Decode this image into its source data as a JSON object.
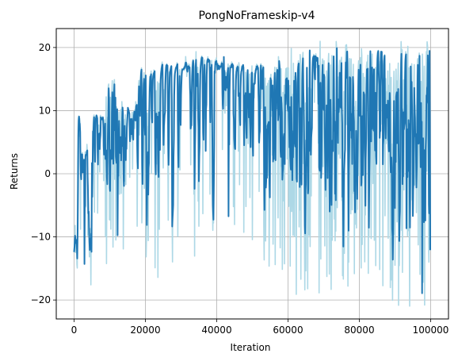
{
  "chart_data": {
    "type": "line",
    "title": "PongNoFrameskip-v4",
    "xlabel": "Iteration",
    "ylabel": "Returns",
    "xlim": [
      -5000,
      105000
    ],
    "ylim": [
      -23,
      23
    ],
    "xticks": [
      0,
      20000,
      40000,
      60000,
      80000,
      100000
    ],
    "xtick_labels": [
      "0",
      "20000",
      "40000",
      "60000",
      "80000",
      "100000"
    ],
    "yticks": [
      -20,
      -10,
      0,
      10,
      20
    ],
    "ytick_labels": [
      "−20",
      "−10",
      "0",
      "10",
      "20"
    ],
    "grid": true,
    "legend": "none",
    "colors": {
      "raw": "#add8e6",
      "smoothed": "#1f77b4",
      "grid": "#b0b0b0"
    },
    "segments": [
      [
        0,
        1000,
        -16,
        -8,
        0.5
      ],
      [
        1000,
        2000,
        -16,
        12,
        0.5
      ],
      [
        2000,
        4000,
        -16,
        5,
        0.2
      ],
      [
        4000,
        5000,
        -21,
        -8,
        0.4
      ],
      [
        5000,
        9000,
        -10,
        11,
        0.3
      ],
      [
        9000,
        10000,
        -20,
        17,
        0.4
      ],
      [
        10000,
        12000,
        -12,
        17,
        0.3
      ],
      [
        12000,
        18000,
        -12,
        12,
        0.3
      ],
      [
        18000,
        20000,
        -10,
        18,
        0.3
      ],
      [
        20000,
        23000,
        -15,
        18,
        0.3
      ],
      [
        23000,
        33000,
        -18,
        19,
        0.3
      ],
      [
        33000,
        37000,
        -20,
        20,
        0.4
      ],
      [
        37000,
        40000,
        -20,
        20,
        0.3
      ],
      [
        40000,
        50000,
        -10,
        19,
        0.15
      ],
      [
        50000,
        52000,
        -20,
        19,
        0.3
      ],
      [
        52000,
        58000,
        -15,
        19,
        0.3
      ],
      [
        58000,
        64000,
        -20,
        20,
        0.4
      ],
      [
        64000,
        74000,
        -20,
        21,
        0.5
      ],
      [
        74000,
        80000,
        -18,
        21,
        0.5
      ],
      [
        80000,
        92000,
        -21,
        21,
        0.5
      ],
      [
        92000,
        100000,
        -21,
        21,
        0.6
      ]
    ]
  }
}
